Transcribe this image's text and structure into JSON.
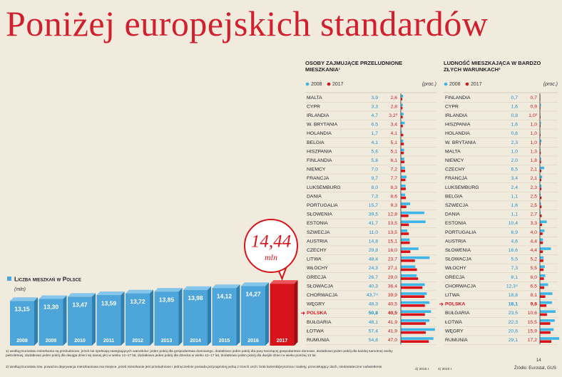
{
  "title": "Poniżej europejskich standardów",
  "footnotes": [
    "1) według Eurostatu mieszkania są przeludnione, jeżeli nie spełniają następujących warunków: jeden pokój dla gospodarstwa domowego, dodatkowo jeden pokój dla pary tworzącej gospodarstwo domowe, dodatkowo jeden pokój dla każdej samotnej osoby pełnoletniej, dodatkowo jeden pokój dla dwojga dzieci tej samej płci w wieku 12–17 lat, dodatkowo jeden pokój dla dziecka w wieku 12–17 lat, dodatkowo jeden pokój dla dwójki dzieci w wieku poniżej 12 lat",
    "2) według Eurostatu tzw. poważna deprywacja mieszkaniowa ma miejsce, jeżeli mieszkanie jest przeludnione i jednocześnie posiada przynajmniej jedną z trzech cech: brak łazienki/prysznica i toalety, przeciekający dach, niedostateczne naświetlenie.",
    "3) 2016 r.",
    "4) 2010 r."
  ],
  "source": "Źródło: Eurostat, GUS",
  "page_number": "14",
  "chart_data": [
    {
      "type": "bar",
      "title": "Liczba mieszkań w Polsce",
      "unit_label": "(mln)",
      "callout_unit": "mln",
      "categories": [
        "2008",
        "2009",
        "2010",
        "2011",
        "2012",
        "2013",
        "2014",
        "2015",
        "2016",
        "2017"
      ],
      "values": [
        13.15,
        13.3,
        13.47,
        13.59,
        13.72,
        13.85,
        13.98,
        14.12,
        14.27,
        14.44
      ],
      "value_labels": [
        "13,15",
        "13,30",
        "13,47",
        "13,59",
        "13,72",
        "13,85",
        "13,98",
        "14,12",
        "14,27",
        "14,44"
      ],
      "ylim": [
        9.8,
        14.5
      ],
      "color": "#4ea5d9",
      "highlight_color": "#d7141a",
      "highlight_category": "2017"
    },
    {
      "type": "barh",
      "title": "Osoby zajmujące przeludnione mieszkania¹",
      "unit_label": "(proc.)",
      "highlight_category": "POLSKA",
      "categories": [
        "MALTA",
        "CYPR",
        "IRLANDIA",
        "W. BRYTANIA",
        "HOLANDIA",
        "BELGIA",
        "HISZPANIA",
        "FINLANDIA",
        "NIEMCY",
        "FRANCJA",
        "LUKSEMBURG",
        "DANIA",
        "PORTUGALIA",
        "SŁOWENIA",
        "ESTONIA",
        "SZWECJA",
        "AUSTRIA",
        "CZECHY",
        "LITWA",
        "WŁOCHY",
        "GRECJA",
        "SŁOWACJA",
        "CHORWACJA",
        "WĘGRY",
        "POLSKA",
        "BUŁGARIA",
        "ŁOTWA",
        "RUMUNIA"
      ],
      "xlim": [
        0,
        60
      ],
      "series": [
        {
          "name": "2008",
          "color": "#3db5e6",
          "values": [
            3.9,
            3.3,
            4.7,
            6.5,
            1.7,
            4.1,
            5.6,
            5.8,
            7.0,
            9.7,
            8.0,
            7.3,
            15.7,
            39.5,
            41.7,
            11.0,
            14.8,
            29.8,
            48.4,
            24.3,
            26.7,
            40.3,
            43.7,
            48.3,
            50.8,
            48.1,
            57.4,
            54.8
          ],
          "value_labels": [
            "3,9",
            "3,3",
            "4,7",
            "6,5",
            "1,7",
            "4,1",
            "5,6",
            "5,8",
            "7,0",
            "9,7",
            "8,0",
            "7,3",
            "15,7",
            "39,5",
            "41,7",
            "11,0",
            "14,8",
            "29,8",
            "48,4",
            "24,3",
            "26,7",
            "40,3",
            "43,7⁴",
            "48,3",
            "50,8",
            "48,1",
            "57,4",
            "54,8"
          ]
        },
        {
          "name": "2017",
          "color": "#d7141a",
          "values": [
            2.6,
            2.8,
            3.2,
            3.4,
            4.1,
            5.1,
            5.1,
            6.1,
            7.2,
            7.7,
            8.3,
            8.6,
            9.3,
            12.8,
            13.5,
            13.5,
            15.1,
            16.0,
            23.7,
            27.1,
            29.0,
            36.4,
            39.9,
            40.5,
            40.5,
            41.9,
            41.9,
            47.0
          ],
          "value_labels": [
            "2,6",
            "2,8",
            "3,2³",
            "3,4",
            "4,1",
            "5,1",
            "5,1",
            "6,1",
            "7,2",
            "7,7",
            "8,3",
            "8,6",
            "9,3",
            "12,8",
            "13,5",
            "13,5",
            "15,1",
            "16,0",
            "23,7",
            "27,1",
            "29,0",
            "36,4",
            "39,9",
            "40,5",
            "40,5",
            "41,9",
            "41,9",
            "47,0"
          ]
        }
      ]
    },
    {
      "type": "barh",
      "title": "Ludność mieszkająca w bardzo złych warunkach²",
      "unit_label": "(proc.)",
      "highlight_category": "POLSKA",
      "categories": [
        "FINLANDIA",
        "CYPR",
        "IRLANDIA",
        "HISZPANIA",
        "HOLANDIA",
        "W. BRYTANIA",
        "MALTA",
        "NIEMCY",
        "CZECHY",
        "FRANCJA",
        "LUKSEMBURG",
        "BELGIA",
        "SZWECJA",
        "DANIA",
        "ESTONIA",
        "PORTUGALIA",
        "AUSTRIA",
        "SŁOWENIA",
        "SŁOWACJA",
        "WŁOCHY",
        "GRECJA",
        "CHORWACJA",
        "LITWA",
        "POLSKA",
        "BUŁGARIA",
        "ŁOTWA",
        "WĘGRY",
        "RUMUNIA"
      ],
      "xlim": [
        0,
        30
      ],
      "series": [
        {
          "name": "2008",
          "color": "#3db5e6",
          "values": [
            0.7,
            1.6,
            0.8,
            1.6,
            0.6,
            2.3,
            1.0,
            2.0,
            6.5,
            3.4,
            2.4,
            1.1,
            1.6,
            1.1,
            10.4,
            6.9,
            4.6,
            16.6,
            5.5,
            7.3,
            8.1,
            12.3,
            18.8,
            18.1,
            23.5,
            22.3,
            20.6,
            29.1
          ],
          "value_labels": [
            "0,7",
            "1,6",
            "0,8",
            "1,6",
            "0,6",
            "2,3",
            "1,0",
            "2,0",
            "6,5",
            "3,4",
            "2,4",
            "1,1",
            "1,6",
            "1,1",
            "10,4",
            "6,9",
            "4,6",
            "16,6",
            "5,5",
            "7,3",
            "8,1",
            "12,3⁴",
            "18,8",
            "18,1",
            "23,5",
            "22,3",
            "20,6",
            "29,1"
          ]
        },
        {
          "name": "2017",
          "color": "#d7141a",
          "values": [
            0.7,
            0.9,
            1.0,
            1.0,
            1.0,
            1.0,
            1.3,
            1.8,
            2.1,
            2.1,
            2.3,
            2.5,
            2.5,
            2.7,
            3.3,
            4.0,
            4.4,
            4.4,
            5.2,
            5.5,
            6.0,
            6.5,
            8.1,
            9.8,
            10.6,
            15.5,
            15.9,
            17.2
          ],
          "value_labels": [
            "0,7",
            "0,9",
            "1,0³",
            "1,0",
            "1,0",
            "1,0",
            "1,3",
            "1,8",
            "2,1",
            "2,1",
            "2,3",
            "2,5",
            "2,5",
            "2,7",
            "3,3",
            "4,0",
            "4,4",
            "4,4",
            "5,2",
            "5,5",
            "6,0",
            "6,5",
            "8,1",
            "9,8",
            "10,6",
            "15,5",
            "15,9",
            "17,2"
          ]
        }
      ]
    }
  ]
}
